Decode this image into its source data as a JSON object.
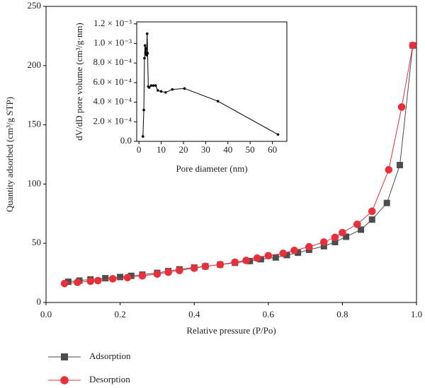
{
  "chart_data": [
    {
      "type": "scatter-line",
      "xlabel": "Relative pressure (P/Po)",
      "ylabel": "Quantity adsorbed (cm³/g STP)",
      "xlim": [
        0,
        1.0
      ],
      "ylim": [
        0,
        250
      ],
      "xticks": [
        {
          "value": 0,
          "label": "0.0"
        },
        0.2,
        0.4,
        0.6,
        0.8,
        {
          "value": 1,
          "label": "1.0"
        }
      ],
      "yticks": [
        0,
        50,
        100,
        150,
        200,
        250
      ],
      "legend": "bottom-left",
      "series": [
        {
          "name": "Adsorption",
          "color": "#4d4d4d",
          "marker": "square",
          "x": [
            0.06,
            0.09,
            0.12,
            0.16,
            0.2,
            0.23,
            0.26,
            0.3,
            0.33,
            0.36,
            0.4,
            0.43,
            0.47,
            0.51,
            0.55,
            0.58,
            0.62,
            0.65,
            0.68,
            0.71,
            0.75,
            0.78,
            0.81,
            0.85,
            0.88,
            0.92,
            0.955,
            0.99
          ],
          "values": [
            17.5,
            18.5,
            19.5,
            20.5,
            21.5,
            22.5,
            23.5,
            25,
            26.5,
            28,
            29.5,
            30.5,
            32,
            33.5,
            35,
            36.5,
            38,
            40,
            42,
            44.5,
            47.5,
            51,
            55.5,
            61.5,
            70,
            84,
            116,
            217
          ]
        },
        {
          "name": "Desorption",
          "color": "#e8303a",
          "marker": "circle",
          "x": [
            0.05,
            0.085,
            0.12,
            0.14,
            0.18,
            0.22,
            0.26,
            0.3,
            0.33,
            0.36,
            0.4,
            0.43,
            0.47,
            0.51,
            0.54,
            0.57,
            0.6,
            0.64,
            0.67,
            0.71,
            0.75,
            0.78,
            0.8,
            0.84,
            0.88,
            0.925,
            0.96,
            0.99
          ],
          "values": [
            16,
            17,
            18,
            18.5,
            20,
            21,
            22.5,
            24,
            25.5,
            27,
            29,
            30.5,
            32,
            34,
            35.5,
            37.5,
            39.5,
            41.5,
            44,
            47,
            51,
            55,
            59,
            66,
            77,
            112,
            165,
            217
          ]
        }
      ]
    },
    {
      "type": "line",
      "xlabel": "Pore diameter (nm)",
      "ylabel": "dV/dD pore volume (cm³/g·nm)",
      "xlim": [
        -1,
        66.5
      ],
      "ylim": [
        0,
        0.00122
      ],
      "xticks": [
        0,
        10,
        20,
        30,
        40,
        50,
        60
      ],
      "yticks": [
        {
          "value": 0,
          "label": "0.0"
        },
        {
          "value": 0.0002,
          "label": "2.0 × 10⁻⁴"
        },
        {
          "value": 0.0004,
          "label": "4.0 × 10⁻⁴"
        },
        {
          "value": 0.0006,
          "label": "6.0 × 10⁻⁴"
        },
        {
          "value": 0.0008,
          "label": "8.0 × 10⁻⁴"
        },
        {
          "value": 0.001,
          "label": "1.0 × 10⁻³"
        },
        {
          "value": 0.0012,
          "label": "1.2 × 10⁻³"
        }
      ],
      "color": "#000000",
      "x": [
        1.8,
        2.2,
        2.5,
        2.7,
        3.0,
        3.2,
        3.4,
        3.7,
        3.9,
        4.2,
        4.6,
        5.5,
        6.5,
        7.5,
        8.5,
        10,
        12,
        15,
        20.5,
        35.5,
        62.5
      ],
      "values": [
        5e-05,
        0.00032,
        0.00085,
        0.00098,
        0.0009,
        0.00095,
        0.00088,
        0.0011,
        0.0009,
        0.00056,
        0.00055,
        0.00057,
        0.00057,
        0.00057,
        0.00052,
        0.00051,
        0.0005,
        0.00053,
        0.00054,
        0.00041,
        7e-05
      ]
    }
  ]
}
